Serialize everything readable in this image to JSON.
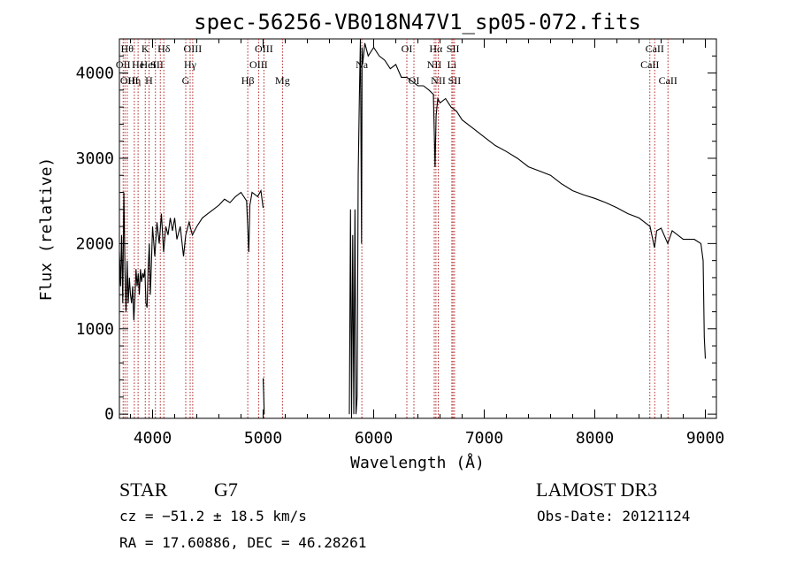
{
  "chart_data": {
    "type": "line",
    "title": "spec-56256-VB018N47V1_sp05-072.fits",
    "xlabel": "Wavelength (Å)",
    "ylabel": "Flux (relative)",
    "xlim": [
      3700,
      9100
    ],
    "ylim": [
      -50,
      4400
    ],
    "xticks": [
      4000,
      5000,
      6000,
      7000,
      8000,
      9000
    ],
    "yticks": [
      0,
      1000,
      2000,
      3000,
      4000
    ],
    "xtick_labels": [
      "4000",
      "5000",
      "6000",
      "7000",
      "8000",
      "9000"
    ],
    "ytick_labels": [
      "0",
      "1000",
      "2000",
      "3000",
      "4000"
    ],
    "grid": false,
    "series": [
      {
        "line_color": "#000000",
        "segments": [
          [
            [
              3700,
              1900
            ],
            [
              3710,
              1500
            ],
            [
              3720,
              2100
            ],
            [
              3730,
              1300
            ],
            [
              3740,
              2600
            ],
            [
              3750,
              1700
            ],
            [
              3760,
              1200
            ],
            [
              3770,
              1800
            ],
            [
              3780,
              1300
            ],
            [
              3790,
              1600
            ],
            [
              3800,
              1400
            ],
            [
              3810,
              1300
            ],
            [
              3820,
              1500
            ],
            [
              3830,
              1100
            ],
            [
              3840,
              1350
            ],
            [
              3850,
              1700
            ],
            [
              3860,
              1500
            ],
            [
              3870,
              1650
            ],
            [
              3880,
              1400
            ],
            [
              3890,
              1700
            ],
            [
              3900,
              1550
            ],
            [
              3910,
              1650
            ],
            [
              3920,
              1600
            ],
            [
              3930,
              1700
            ],
            [
              3940,
              1300
            ],
            [
              3950,
              1250
            ],
            [
              3960,
              1700
            ],
            [
              3970,
              2000
            ],
            [
              3980,
              1400
            ],
            [
              3990,
              1800
            ],
            [
              4000,
              2200
            ],
            [
              4020,
              1850
            ],
            [
              4040,
              2250
            ],
            [
              4060,
              2000
            ],
            [
              4080,
              2350
            ],
            [
              4100,
              1900
            ],
            [
              4120,
              2200
            ],
            [
              4140,
              2100
            ],
            [
              4160,
              2300
            ],
            [
              4180,
              2150
            ],
            [
              4200,
              2300
            ],
            [
              4220,
              2050
            ],
            [
              4250,
              2200
            ],
            [
              4280,
              1850
            ],
            [
              4300,
              2100
            ],
            [
              4330,
              2250
            ],
            [
              4360,
              2100
            ],
            [
              4400,
              2200
            ],
            [
              4450,
              2300
            ],
            [
              4500,
              2350
            ],
            [
              4550,
              2400
            ],
            [
              4600,
              2450
            ],
            [
              4650,
              2520
            ],
            [
              4700,
              2480
            ],
            [
              4750,
              2550
            ],
            [
              4800,
              2600
            ],
            [
              4850,
              2500
            ],
            [
              4870,
              1900
            ],
            [
              4880,
              2450
            ],
            [
              4900,
              2600
            ],
            [
              4950,
              2550
            ],
            [
              4980,
              2620
            ],
            [
              5000,
              2420
            ]
          ],
          [
            [
              5000,
              420
            ],
            [
              5005,
              250
            ],
            [
              5010,
              0
            ]
          ],
          [
            [
              5780,
              0
            ],
            [
              5790,
              2400
            ],
            [
              5800,
              0
            ],
            [
              5810,
              2100
            ],
            [
              5820,
              0
            ],
            [
              5830,
              2400
            ],
            [
              5840,
              0
            ],
            [
              5850,
              200
            ],
            [
              5860,
              2800
            ],
            [
              5870,
              3700
            ],
            [
              5880,
              4400
            ],
            [
              5890,
              2000
            ],
            [
              5895,
              4300
            ],
            [
              5900,
              4100
            ],
            [
              5920,
              4350
            ],
            [
              5950,
              4200
            ],
            [
              6000,
              4300
            ],
            [
              6050,
              4200
            ],
            [
              6100,
              4150
            ],
            [
              6150,
              4050
            ],
            [
              6200,
              4100
            ],
            [
              6250,
              3950
            ],
            [
              6300,
              3950
            ],
            [
              6350,
              3900
            ],
            [
              6400,
              3850
            ],
            [
              6450,
              3850
            ],
            [
              6500,
              3800
            ],
            [
              6540,
              3750
            ],
            [
              6555,
              2900
            ],
            [
              6565,
              3500
            ],
            [
              6580,
              3700
            ],
            [
              6600,
              3650
            ],
            [
              6650,
              3700
            ],
            [
              6700,
              3600
            ],
            [
              6750,
              3550
            ],
            [
              6800,
              3450
            ],
            [
              6900,
              3350
            ],
            [
              7000,
              3250
            ],
            [
              7100,
              3150
            ],
            [
              7200,
              3080
            ],
            [
              7300,
              3000
            ],
            [
              7400,
              2900
            ],
            [
              7500,
              2850
            ],
            [
              7600,
              2800
            ],
            [
              7700,
              2700
            ],
            [
              7800,
              2620
            ],
            [
              7900,
              2570
            ],
            [
              8000,
              2530
            ],
            [
              8100,
              2480
            ],
            [
              8200,
              2420
            ],
            [
              8300,
              2350
            ],
            [
              8400,
              2300
            ],
            [
              8500,
              2200
            ],
            [
              8540,
              1950
            ],
            [
              8560,
              2150
            ],
            [
              8600,
              2180
            ],
            [
              8660,
              2000
            ],
            [
              8700,
              2150
            ],
            [
              8800,
              2050
            ],
            [
              8900,
              2050
            ],
            [
              8960,
              2000
            ],
            [
              8980,
              1800
            ],
            [
              8990,
              900
            ],
            [
              9000,
              650
            ]
          ]
        ]
      }
    ],
    "lines": [
      {
        "x": 3734,
        "label": "OII",
        "row": 1,
        "xtext": 3734
      },
      {
        "x": 3750,
        "label": "Hθ",
        "row": 0,
        "xtext": 3770
      },
      {
        "x": 3771,
        "label": "OIII",
        "row": 2,
        "xtext": 3790
      },
      {
        "x": 3835,
        "label": "Hη",
        "row": 2,
        "xtext": 3835
      },
      {
        "x": 3869,
        "label": "He",
        "row": 1,
        "xtext": 3869
      },
      {
        "x": 3934,
        "label": "K",
        "row": 0,
        "xtext": 3934
      },
      {
        "x": 3968,
        "label": "H",
        "row": 2,
        "xtext": 3968
      },
      {
        "x": 4026,
        "label": "HeI",
        "row": 1,
        "xtext": 3960
      },
      {
        "x": 4070,
        "label": "SII",
        "row": 1,
        "xtext": 4040
      },
      {
        "x": 4102,
        "label": "Hδ",
        "row": 0,
        "xtext": 4102
      },
      {
        "x": 4300,
        "label": "G",
        "row": 2,
        "xtext": 4300
      },
      {
        "x": 4340,
        "label": "Hγ",
        "row": 1,
        "xtext": 4340
      },
      {
        "x": 4363,
        "label": "OIII",
        "row": 0,
        "xtext": 4363
      },
      {
        "x": 4861,
        "label": "Hβ",
        "row": 2,
        "xtext": 4861
      },
      {
        "x": 4959,
        "label": "OIII",
        "row": 1,
        "xtext": 4959
      },
      {
        "x": 5007,
        "label": "OIII",
        "row": 0,
        "xtext": 5007
      },
      {
        "x": 5175,
        "label": "Mg",
        "row": 2,
        "xtext": 5175
      },
      {
        "x": 5893,
        "label": "Na",
        "row": 1,
        "xtext": 5893
      },
      {
        "x": 6300,
        "label": "OI",
        "row": 0,
        "xtext": 6300
      },
      {
        "x": 6364,
        "label": "OI",
        "row": 2,
        "xtext": 6364
      },
      {
        "x": 6548,
        "label": "NII",
        "row": 1,
        "xtext": 6548
      },
      {
        "x": 6563,
        "label": "Hα",
        "row": 0,
        "xtext": 6563
      },
      {
        "x": 6584,
        "label": "NII",
        "row": 2,
        "xtext": 6584
      },
      {
        "x": 6707,
        "label": "Li",
        "row": 1,
        "xtext": 6707
      },
      {
        "x": 6717,
        "label": "SII",
        "row": 0,
        "xtext": 6717
      },
      {
        "x": 6731,
        "label": "SII",
        "row": 2,
        "xtext": 6731
      },
      {
        "x": 8498,
        "label": "CaII",
        "row": 1,
        "xtext": 8498
      },
      {
        "x": 8542,
        "label": "CaII",
        "row": 0,
        "xtext": 8542
      },
      {
        "x": 8662,
        "label": "CaII",
        "row": 2,
        "xtext": 8662
      }
    ],
    "line_color": "#b22222"
  },
  "info": {
    "class_label": "STAR",
    "subclass": "G7",
    "survey": "LAMOST DR3",
    "cz": "cz = −51.2 ± 18.5 km/s",
    "obs_date": "Obs-Date: 20121124",
    "radec": "RA =  17.60886, DEC =  46.28261"
  }
}
